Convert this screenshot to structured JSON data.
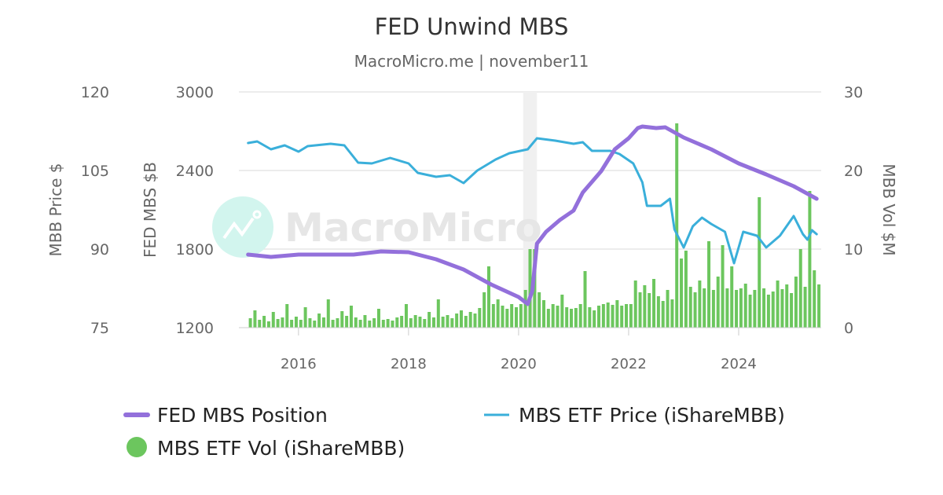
{
  "chart_data": {
    "type": "line",
    "title": "FED Unwind MBS",
    "subtitle": "MacroMicro.me | november11",
    "watermark": "MacroMicro",
    "x_ticks": [
      "2016",
      "2018",
      "2020",
      "2022",
      "2024"
    ],
    "xlim": [
      "2014-12",
      "2025-07"
    ],
    "grid": true,
    "legend_position": "bottom",
    "shaded_regions": [
      {
        "start": "2020-02",
        "end": "2020-05",
        "color": "#f0f0f0"
      }
    ],
    "axes": {
      "price": {
        "label": "MBB Price $",
        "side": "left-outer",
        "ylim": [
          75,
          120
        ],
        "ticks": [
          "75",
          "90",
          "105",
          "120"
        ]
      },
      "fed": {
        "label": "FED MBS $B",
        "side": "left-inner",
        "ylim": [
          1200,
          3000
        ],
        "ticks": [
          "1200",
          "1800",
          "2400",
          "3000"
        ]
      },
      "vol": {
        "label": "MBB Vol $M",
        "side": "right",
        "ylim": [
          0,
          30
        ],
        "ticks": [
          "0",
          "10",
          "20",
          "30"
        ]
      }
    },
    "series": [
      {
        "name": "FED MBS Position",
        "type": "line",
        "axis": "fed",
        "color": "#9370db",
        "x": [
          "2015-02",
          "2015-07",
          "2016-01",
          "2017-01",
          "2017-07",
          "2018-01",
          "2018-07",
          "2019-01",
          "2019-07",
          "2020-01",
          "2020-03",
          "2020-04",
          "2020-05",
          "2020-07",
          "2020-10",
          "2021-01",
          "2021-03",
          "2021-07",
          "2021-10",
          "2022-01",
          "2022-03",
          "2022-04",
          "2022-07",
          "2022-09",
          "2023-01",
          "2023-07",
          "2024-01",
          "2024-07",
          "2025-01",
          "2025-06"
        ],
        "y": [
          1758,
          1740,
          1758,
          1758,
          1782,
          1776,
          1722,
          1644,
          1530,
          1434,
          1380,
          1482,
          1842,
          1932,
          2022,
          2094,
          2232,
          2394,
          2562,
          2646,
          2724,
          2736,
          2724,
          2730,
          2652,
          2562,
          2454,
          2370,
          2280,
          2184
        ]
      },
      {
        "name": "MBS ETF Price (iShareMBB)",
        "type": "line",
        "axis": "price",
        "color": "#3aafda",
        "x": [
          "2015-02",
          "2015-04",
          "2015-07",
          "2015-10",
          "2016-01",
          "2016-03",
          "2016-08",
          "2016-11",
          "2017-02",
          "2017-05",
          "2017-09",
          "2018-01",
          "2018-03",
          "2018-07",
          "2018-10",
          "2019-01",
          "2019-04",
          "2019-08",
          "2019-11",
          "2020-03",
          "2020-05",
          "2020-09",
          "2021-01",
          "2021-03",
          "2021-05",
          "2021-09",
          "2021-11",
          "2022-02",
          "2022-04",
          "2022-05",
          "2022-08",
          "2022-10",
          "2022-11",
          "2023-01",
          "2023-03",
          "2023-05",
          "2023-07",
          "2023-10",
          "2023-12",
          "2024-02",
          "2024-05",
          "2024-07",
          "2024-10",
          "2025-01",
          "2025-03",
          "2025-04",
          "2025-05",
          "2025-06"
        ],
        "y": [
          110.25,
          110.55,
          109.05,
          109.8,
          108.6,
          109.65,
          110.1,
          109.8,
          106.5,
          106.35,
          107.4,
          106.35,
          104.55,
          103.8,
          104.1,
          102.6,
          105.0,
          107.1,
          108.3,
          109.05,
          111.15,
          110.7,
          110.1,
          110.4,
          108.75,
          108.75,
          108.15,
          106.35,
          102.75,
          98.25,
          98.25,
          99.6,
          93.75,
          90.3,
          94.35,
          96.0,
          94.8,
          93.3,
          87.3,
          93.3,
          92.55,
          90.3,
          92.55,
          96.3,
          92.85,
          91.8,
          93.6,
          92.85
        ]
      },
      {
        "name": "MBS ETF Vol (iShareMBB)",
        "type": "bar",
        "axis": "vol",
        "color": "#6cc65e",
        "start": "2015-02",
        "values": [
          1.2,
          2.2,
          1.0,
          1.5,
          0.8,
          2.0,
          1.1,
          1.3,
          3.0,
          1.0,
          1.4,
          1.0,
          2.6,
          1.2,
          0.9,
          1.8,
          1.3,
          3.6,
          1.0,
          1.2,
          2.1,
          1.5,
          2.8,
          1.3,
          1.0,
          1.6,
          0.9,
          1.2,
          2.4,
          1.0,
          1.1,
          0.9,
          1.3,
          1.5,
          3.0,
          1.2,
          1.6,
          1.4,
          1.1,
          2.0,
          1.3,
          3.6,
          1.4,
          1.6,
          1.2,
          1.8,
          2.2,
          1.5,
          2.0,
          1.8,
          2.5,
          4.5,
          7.8,
          3.0,
          3.6,
          2.8,
          2.4,
          3.0,
          2.6,
          3.0,
          4.8,
          10.0,
          10.0,
          4.5,
          3.5,
          2.4,
          3.0,
          2.8,
          4.2,
          2.6,
          2.4,
          2.5,
          3.0,
          7.2,
          2.6,
          2.2,
          2.8,
          3.0,
          3.2,
          2.9,
          3.5,
          2.8,
          3.0,
          3.0,
          6.0,
          4.5,
          5.4,
          4.4,
          6.2,
          4.0,
          3.4,
          4.8,
          3.6,
          26.0,
          8.8,
          9.8,
          5.2,
          4.5,
          6.0,
          5.0,
          11.0,
          4.8,
          6.5,
          10.5,
          5.0,
          7.8,
          4.8,
          5.0,
          5.6,
          4.2,
          4.8,
          16.6,
          5.0,
          4.2,
          4.6,
          6.0,
          4.9,
          5.5,
          4.4,
          6.5,
          10.0,
          5.2,
          17.4,
          7.3,
          5.5
        ]
      }
    ]
  }
}
